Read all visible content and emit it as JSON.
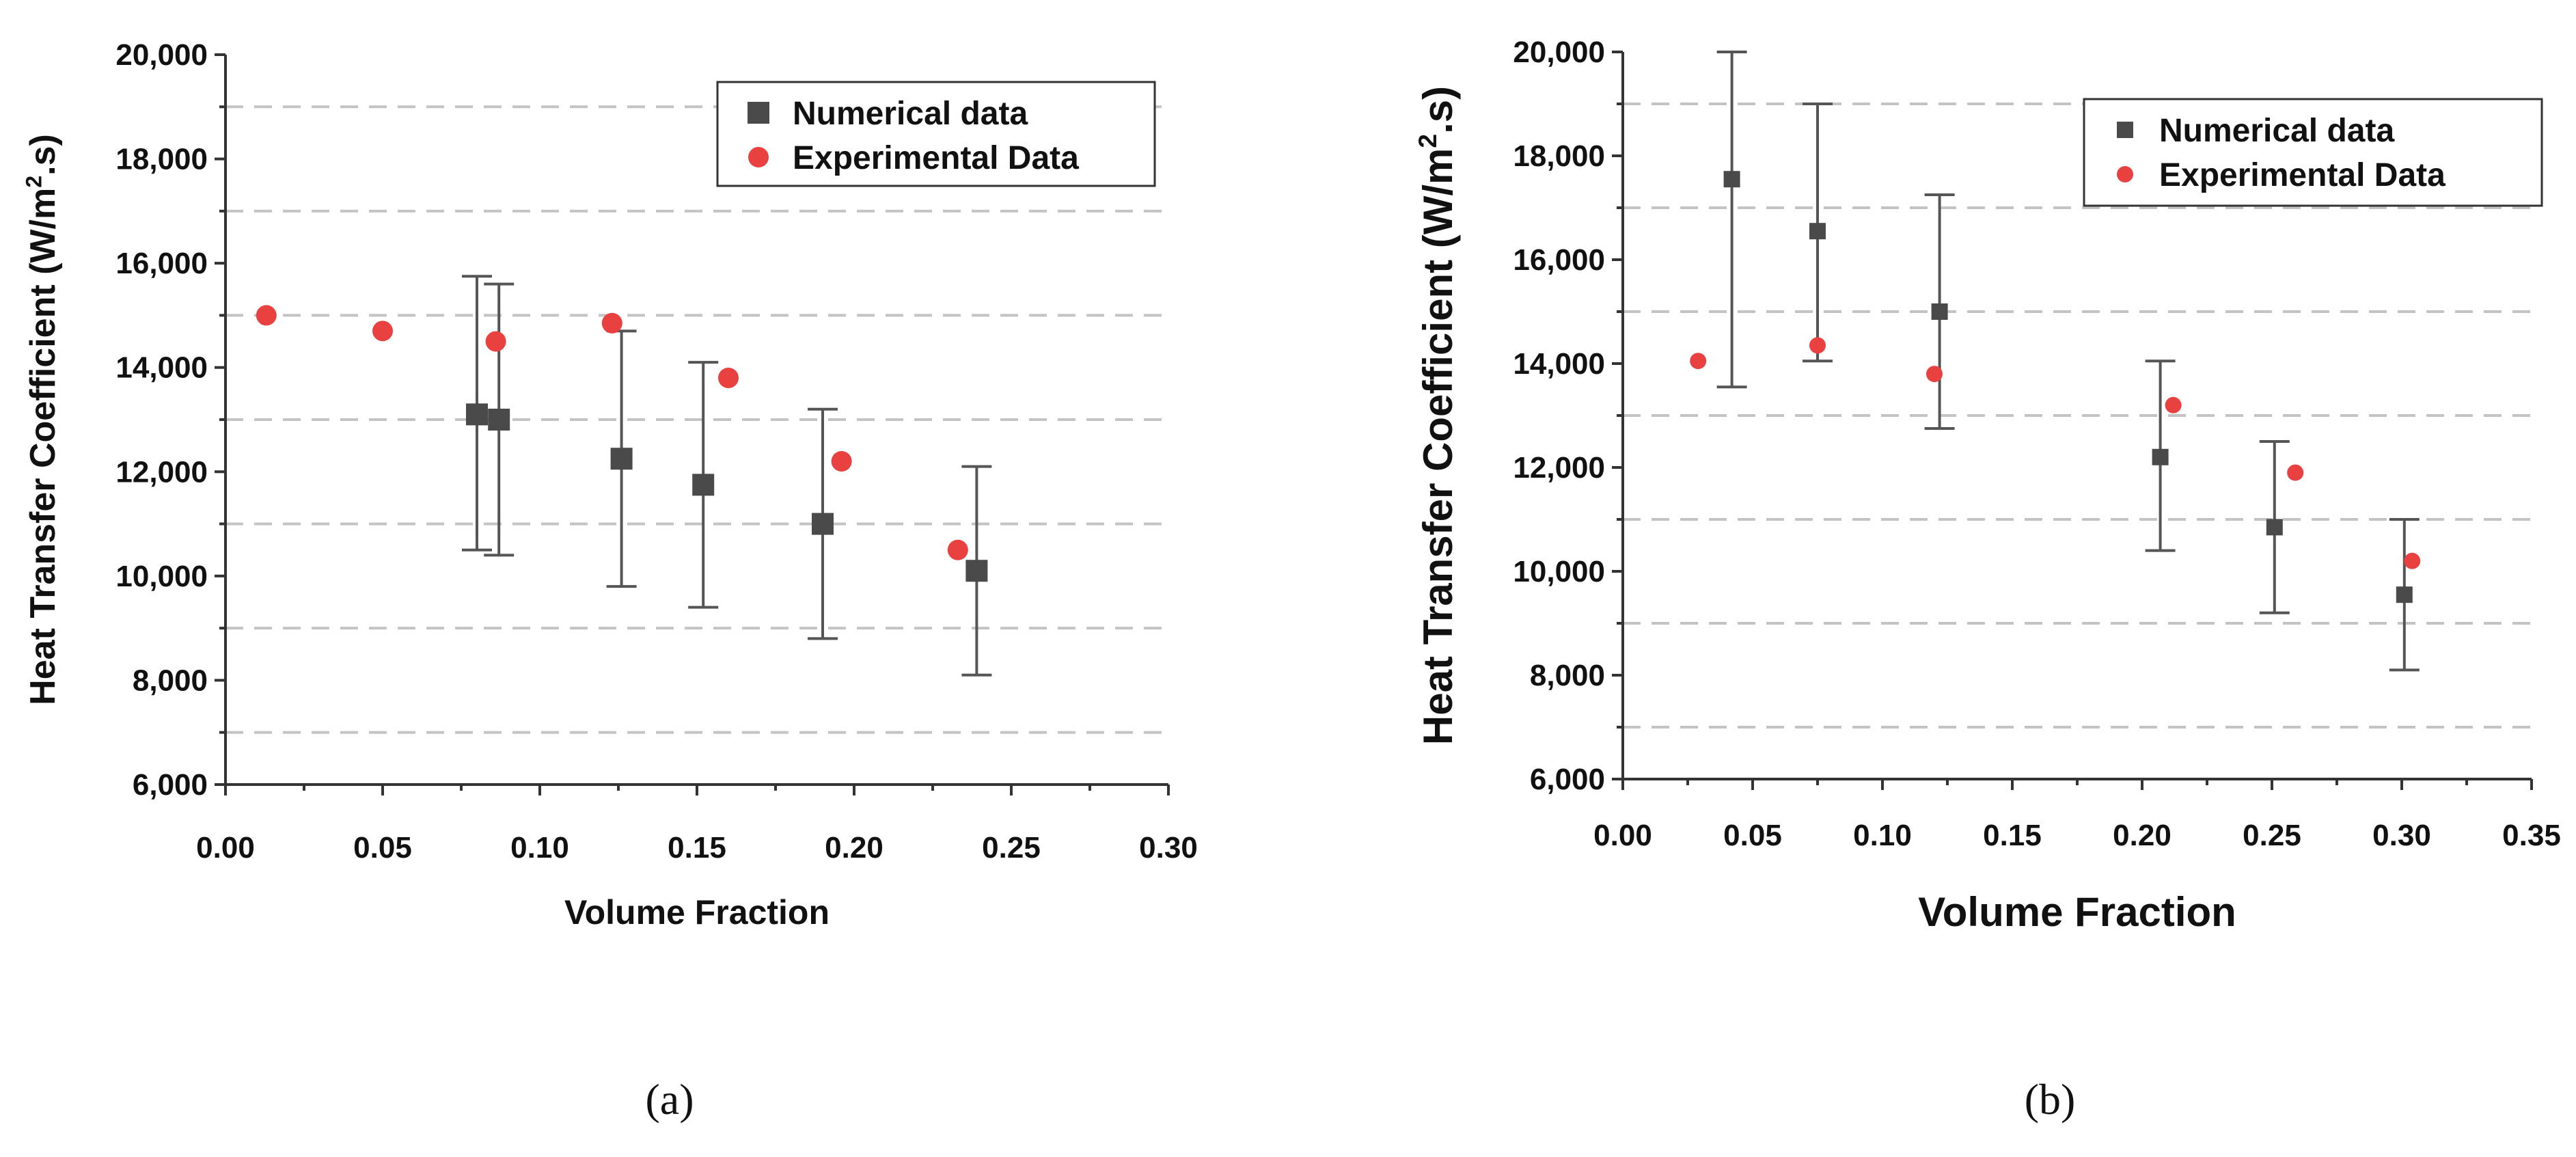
{
  "chart_data": [
    {
      "panel": "a",
      "type": "scatter",
      "caption": "(a)",
      "xlabel": "Volume Fraction",
      "ylabel": "Heat Transfer Coefficient (W/m2.s)",
      "ylabel_parts": {
        "before": "Heat Transfer Coefficient (W/m",
        "sup": "2",
        "after": ".s)"
      },
      "xlim": [
        0.0,
        0.3
      ],
      "ylim": [
        6000,
        20000
      ],
      "x_ticks": [
        0.0,
        0.05,
        0.1,
        0.15,
        0.2,
        0.25,
        0.3
      ],
      "x_tick_labels": [
        "0.00",
        "0.05",
        "0.10",
        "0.15",
        "0.20",
        "0.25",
        "0.30"
      ],
      "y_ticks": [
        6000,
        8000,
        10000,
        12000,
        14000,
        16000,
        18000,
        20000
      ],
      "y_tick_labels": [
        "6,000",
        "8,000",
        "10,000",
        "12,000",
        "14,000",
        "16,000",
        "18,000",
        "20,000"
      ],
      "gridlines_y": [
        7000,
        9000,
        11000,
        13000,
        15000,
        17000,
        19000
      ],
      "legend": {
        "position": "top-right",
        "entries": [
          "Numerical data",
          "Experimental Data"
        ]
      },
      "series": [
        {
          "name": "Numerical data",
          "marker": "square",
          "color": "#4a4a4a",
          "points": [
            {
              "x": 0.08,
              "y": 13100,
              "yerr_low": 10500,
              "yerr_high": 15750
            },
            {
              "x": 0.087,
              "y": 13000,
              "yerr_low": 10400,
              "yerr_high": 15600
            },
            {
              "x": 0.126,
              "y": 12250,
              "yerr_low": 9800,
              "yerr_high": 14700
            },
            {
              "x": 0.152,
              "y": 11750,
              "yerr_low": 9400,
              "yerr_high": 14100
            },
            {
              "x": 0.19,
              "y": 11000,
              "yerr_low": 8800,
              "yerr_high": 13200
            },
            {
              "x": 0.239,
              "y": 10100,
              "yerr_low": 8100,
              "yerr_high": 12100
            }
          ]
        },
        {
          "name": "Experimental Data",
          "marker": "circle",
          "color": "#e94040",
          "points": [
            {
              "x": 0.013,
              "y": 15000
            },
            {
              "x": 0.05,
              "y": 14700
            },
            {
              "x": 0.086,
              "y": 14500
            },
            {
              "x": 0.123,
              "y": 14850
            },
            {
              "x": 0.16,
              "y": 13800
            },
            {
              "x": 0.196,
              "y": 12200
            },
            {
              "x": 0.233,
              "y": 10500
            }
          ]
        }
      ]
    },
    {
      "panel": "b",
      "type": "scatter",
      "caption": "(b)",
      "xlabel": "Volume Fraction",
      "ylabel": "Heat Transfer Coefficient (W/m2.s)",
      "ylabel_parts": {
        "before": "Heat Transfer Coefficient (W/m",
        "sup": "2",
        "after": ".s)"
      },
      "xlim": [
        0.0,
        0.35
      ],
      "ylim": [
        6000,
        20000
      ],
      "x_ticks": [
        0.0,
        0.05,
        0.1,
        0.15,
        0.2,
        0.25,
        0.3,
        0.35
      ],
      "x_tick_labels": [
        "0.00",
        "0.05",
        "0.10",
        "0.15",
        "0.20",
        "0.25",
        "0.30",
        "0.35"
      ],
      "y_ticks": [
        6000,
        8000,
        10000,
        12000,
        14000,
        16000,
        18000,
        20000
      ],
      "y_tick_labels": [
        "6,000",
        "8,000",
        "10,000",
        "12,000",
        "14,000",
        "16,000",
        "18,000",
        "20,000"
      ],
      "gridlines_y": [
        7000,
        9000,
        11000,
        13000,
        15000,
        17000,
        19000
      ],
      "legend": {
        "position": "top-right",
        "entries": [
          "Numerical data",
          "Experimental Data"
        ]
      },
      "series": [
        {
          "name": "Numerical data",
          "marker": "square",
          "color": "#4a4a4a",
          "points": [
            {
              "x": 0.042,
              "y": 17550,
              "yerr_low": 13550,
              "yerr_high": 20000
            },
            {
              "x": 0.075,
              "y": 16550,
              "yerr_low": 14050,
              "yerr_high": 19000
            },
            {
              "x": 0.122,
              "y": 15000,
              "yerr_low": 12750,
              "yerr_high": 17250
            },
            {
              "x": 0.207,
              "y": 12200,
              "yerr_low": 10400,
              "yerr_high": 14050
            },
            {
              "x": 0.251,
              "y": 10850,
              "yerr_low": 9200,
              "yerr_high": 12500
            },
            {
              "x": 0.301,
              "y": 9550,
              "yerr_low": 8100,
              "yerr_high": 11000
            }
          ]
        },
        {
          "name": "Experimental Data",
          "marker": "circle",
          "color": "#e94040",
          "points": [
            {
              "x": 0.029,
              "y": 14050
            },
            {
              "x": 0.075,
              "y": 14350
            },
            {
              "x": 0.12,
              "y": 13800
            },
            {
              "x": 0.212,
              "y": 13200
            },
            {
              "x": 0.259,
              "y": 11900
            },
            {
              "x": 0.304,
              "y": 10200
            }
          ]
        }
      ]
    }
  ]
}
